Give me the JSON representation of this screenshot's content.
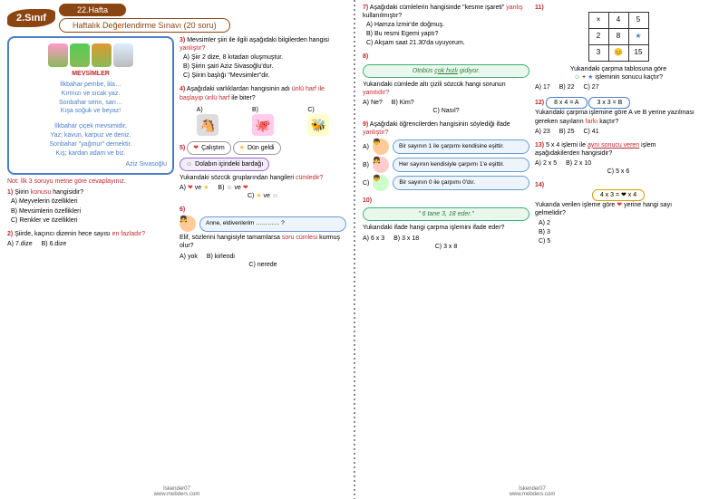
{
  "header": {
    "class_badge": "2.Sınıf",
    "week": "22.Hafta",
    "subtitle": "Haftalık Değerlendirme Sınavı (20 soru)"
  },
  "poem": {
    "title": "MEVSİMLER",
    "stanza1": "İlkbahar pembe, lila…\nKırmızı ve sıcak yaz.\nSonbahar serin, sarı…\nKışa soğuk ve beyaz!",
    "stanza2": "İlkbahar çiçek mevsimidir,\nYaz; kavun, karpuz ve deniz.\nSonbahar \"yağmur\" demektir.\nKış; kardan adam ve biz.",
    "author": "Aziz Sivasoğlu"
  },
  "note": "Not: İlk 3 soruyu metne göre cevaplayınız.",
  "q1": {
    "text": "Şiirin ",
    "key": "konusu",
    "text2": " hangisidir?",
    "a": "A) Meyvelerin özellikleri",
    "b": "B) Mevsimlerin özellikleri",
    "c": "C) Renkler ve özellikleri"
  },
  "q2": {
    "text": "Şiirde, kaçıncı dizenin hece sayısı ",
    "key": "en fazladır?",
    "a": "A) 7.dize",
    "b": "B) 6.dize"
  },
  "q3": {
    "text": "Mevsimler şiiri ile ilgili aşağıdaki bilgilerden hangisi ",
    "key": "yanlıştır?",
    "a": "A) Şiir 2 dize, 8 kıtadan oluşmuştur.",
    "b": "B) Şiirin şairi Aziz Sivasoğlu'dur.",
    "c": "C) Şiirin başlığı \"Mevsimler\"dir."
  },
  "q4": {
    "text": "Aşağıdaki varlıklardan hangisinin adı ",
    "key": "ünlü harf ile başlayıp ünlü harf",
    "text2": " ile biter?"
  },
  "q5": {
    "tag1": "Çalıştım",
    "tag2": "Dün geldi",
    "tag3": "Dolabın içindeki bardağı",
    "text": "Yukarıdaki sözcük gruplarından hangileri ",
    "key": "cümledir?"
  },
  "q6": {
    "bubble": "Anne, eldivenlerim ………… ?",
    "text": "Elif, sözlerini hangisiyle tamamlarsa ",
    "key": "soru cümlesi",
    "text2": " kurmuş olur?",
    "a": "A) yok",
    "b": "B) kirlendi",
    "c": "C) nerede"
  },
  "q7": {
    "text": "Aşağıdaki cümlelerin hangisinde \"kesme işareti\" ",
    "key": "yanlış",
    "text2": " kullanılmıştır?",
    "a": "A) Hamza İzmir'de doğmuş.",
    "b": "B) Bu resmi Egemi yaptı?",
    "c": "C) Akşam saat 21.30'da uyuyorum."
  },
  "q8": {
    "bubble": "Otobüs çok hızlı gidiyor.",
    "text": "Yukarıdaki cümlede altı çizili sözcük hangi sorunun ",
    "key": "yanıtıdır?",
    "a": "A) Ne?",
    "b": "B) Kim?",
    "c": "C) Nasıl?"
  },
  "q9": {
    "text": "Aşağıdaki öğrencilerden hangisinin söylediği ifade ",
    "key": "yanlıştır?",
    "s1": "Bir sayının 1 ile çarpımı kendisine eşittir.",
    "s2": "Her sayının kendisiyle çarpımı 1'e eşittir.",
    "s3": "Bir sayının 0 ile çarpımı 0'dır."
  },
  "q10": {
    "bubble": "\" 6 tane 3, 18 eder.\"",
    "text": "Yukarıdaki ifade hangi çarpma işlemini ifade eder?",
    "a": "A) 6 x 3",
    "b": "B) 3 x 18",
    "c": "C) 3 x 8"
  },
  "q11": {
    "table": [
      [
        "×",
        "4",
        "5"
      ],
      [
        "2",
        "8",
        "★"
      ],
      [
        "3",
        "😊",
        "15"
      ]
    ],
    "text": "Yukarıdaki çarpma tablosuna göre",
    "text2": "işleminin sonucu kaçtır?",
    "a": "A) 17",
    "b": "B) 22",
    "c": "C) 27"
  },
  "q12": {
    "tag1": "8 x 4 = A",
    "tag2": "3 x 3 = B",
    "text": "Yukarıdaki çarpma işlemine göre A ve B yerine yazılması gereken sayıların ",
    "key": "farkı",
    "text2": " kaçtır?",
    "a": "A) 23",
    "b": "B) 25",
    "c": "C) 41"
  },
  "q13": {
    "text": "5 x 4 işlemi ile ",
    "key": "aynı sonucu veren",
    "text2": " işlem aşağıdakilerden hangisidir?",
    "a": "A) 2 x 5",
    "b": "B) 2 x 10",
    "c": "C) 5 x 6"
  },
  "q14": {
    "tag": "4 x 3 = ❤ x 4",
    "text": "Yukarıda verilen işleme göre ",
    "text2": " yerine hangi sayı gelmelidir?",
    "a": "A) 2",
    "b": "B) 3",
    "c": "C) 5"
  },
  "footer": {
    "author": "İskender07",
    "site": "www.mebders.com"
  }
}
